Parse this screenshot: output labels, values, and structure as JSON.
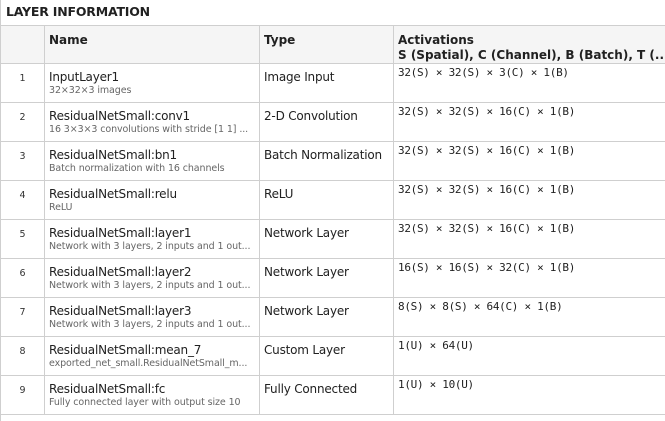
{
  "title": "LAYER INFORMATION",
  "columns": {
    "index": "",
    "name": "Name",
    "type": "Type",
    "activations": "Activations",
    "activations_sub": "S (Spatial), C (Channel), B (Batch), T (..."
  },
  "rows": [
    {
      "index": "1",
      "name": "InputLayer1",
      "desc": "32×32×3 images",
      "type": "Image Input",
      "activations": "32(S) × 32(S) × 3(C) × 1(B)"
    },
    {
      "index": "2",
      "name": "ResidualNetSmall:conv1",
      "desc": "16 3×3×3 convolutions with stride [1 1] ...",
      "type": "2-D Convolution",
      "activations": "32(S) × 32(S) × 16(C) × 1(B)"
    },
    {
      "index": "3",
      "name": "ResidualNetSmall:bn1",
      "desc": "Batch normalization with 16 channels",
      "type": "Batch Normalization",
      "activations": "32(S) × 32(S) × 16(C) × 1(B)"
    },
    {
      "index": "4",
      "name": "ResidualNetSmall:relu",
      "desc": "ReLU",
      "type": "ReLU",
      "activations": "32(S) × 32(S) × 16(C) × 1(B)"
    },
    {
      "index": "5",
      "name": "ResidualNetSmall:layer1",
      "desc": "Network with 3 layers, 2 inputs and 1 out...",
      "type": "Network Layer",
      "activations": "32(S) × 32(S) × 16(C) × 1(B)"
    },
    {
      "index": "6",
      "name": "ResidualNetSmall:layer2",
      "desc": "Network with 3 layers, 2 inputs and 1 out...",
      "type": "Network Layer",
      "activations": "16(S) × 16(S) × 32(C) × 1(B)"
    },
    {
      "index": "7",
      "name": "ResidualNetSmall:layer3",
      "desc": "Network with 3 layers, 2 inputs and 1 out...",
      "type": "Network Layer",
      "activations": "8(S) × 8(S) × 64(C) × 1(B)"
    },
    {
      "index": "8",
      "name": "ResidualNetSmall:mean_7",
      "desc": "exported_net_small.ResidualNetSmall_m...",
      "type": "Custom Layer",
      "activations": "1(U) × 64(U)"
    },
    {
      "index": "9",
      "name": "ResidualNetSmall:fc",
      "desc": "Fully connected layer with output size 10",
      "type": "Fully Connected",
      "activations": "1(U) × 10(U)"
    }
  ]
}
